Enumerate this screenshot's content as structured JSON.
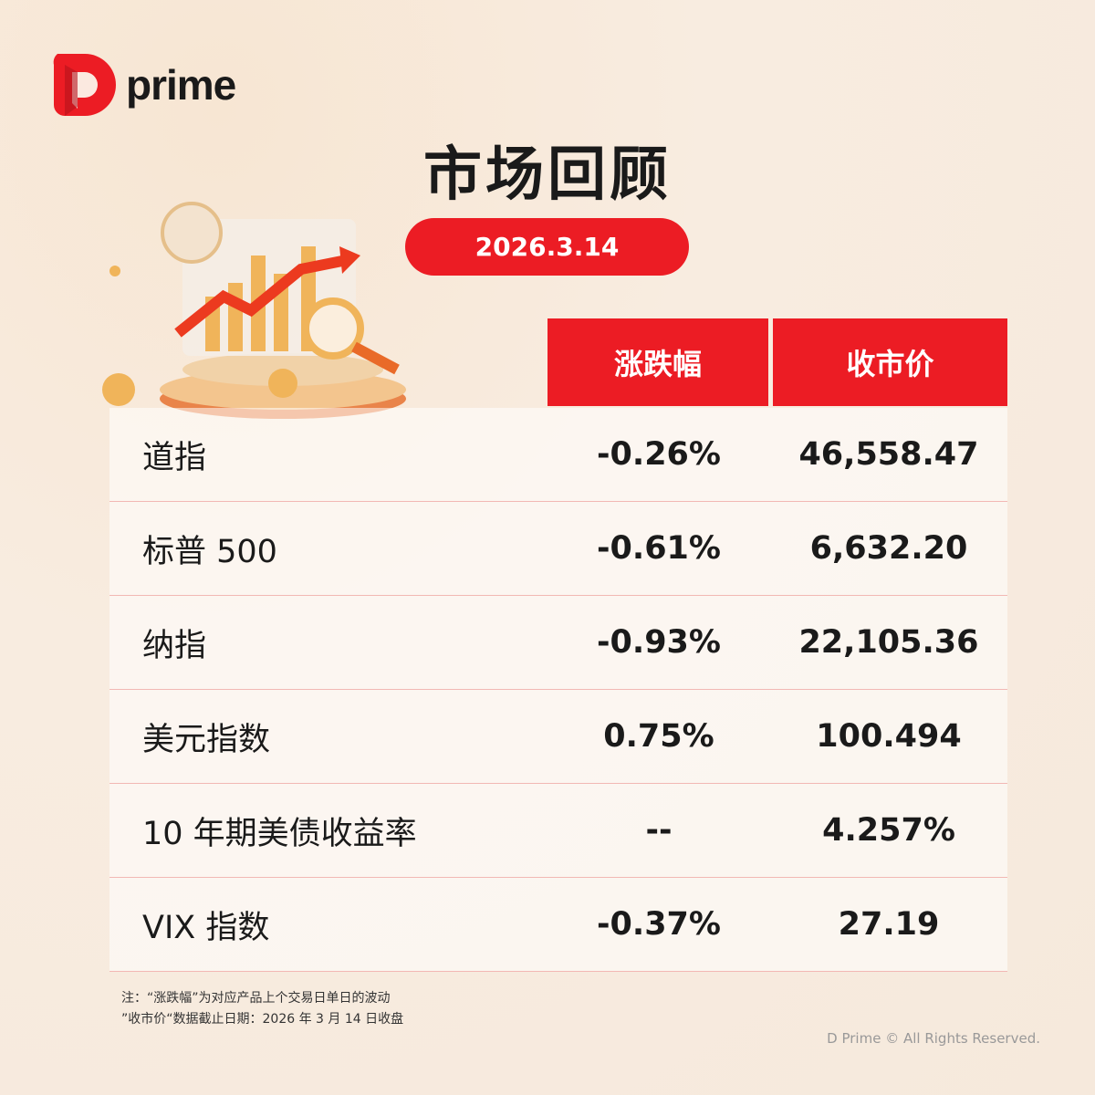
{
  "brand": {
    "logo_text": "prime",
    "accent": "#ec1c24"
  },
  "title": "市场回顾",
  "date": "2026.3.14",
  "table": {
    "headers": [
      "涨跌幅",
      "收市价"
    ],
    "rows": [
      {
        "name": "道指",
        "change": "-0.26%",
        "close": "46,558.47"
      },
      {
        "name": "标普 500",
        "change": "-0.61%",
        "close": "6,632.20"
      },
      {
        "name": "纳指",
        "change": "-0.93%",
        "close": "22,105.36"
      },
      {
        "name": "美元指数",
        "change": "0.75%",
        "close": "100.494"
      },
      {
        "name": "10 年期美债收益率",
        "change": "--",
        "close": "4.257%"
      },
      {
        "name": "VIX 指数",
        "change": "-0.37%",
        "close": "27.19"
      }
    ]
  },
  "notes": [
    "注：“涨跌幅”为对应产品上个交易日单日的波动",
    "”收市价“数据截止日期：2026 年 3 月 14 日收盘"
  ],
  "copyright": "D Prime © All Rights Reserved."
}
